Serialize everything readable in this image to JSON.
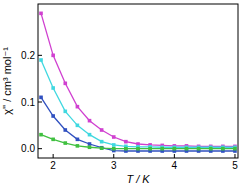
{
  "chart_data": {
    "type": "line",
    "x_label": "T / K",
    "y_label": "χ'' / cm³ mol⁻¹",
    "x": [
      1.8,
      2.0,
      2.2,
      2.4,
      2.6,
      2.8,
      3.0,
      3.2,
      3.4,
      3.6,
      3.8,
      4.0,
      4.2,
      4.4,
      4.6,
      4.8,
      5.0
    ],
    "series": [
      {
        "color": "#d040d0",
        "marker": "square",
        "values": [
          0.29,
          0.2,
          0.14,
          0.09,
          0.06,
          0.04,
          0.025,
          0.015,
          0.01,
          0.008,
          0.007,
          0.006,
          0.006,
          0.005,
          0.005,
          0.005,
          0.005
        ]
      },
      {
        "color": "#40d8e0",
        "marker": "square",
        "values": [
          0.19,
          0.13,
          0.08,
          0.05,
          0.03,
          0.015,
          0.008,
          0.005,
          0.004,
          0.004,
          0.003,
          0.003,
          0.003,
          0.003,
          0.003,
          0.003,
          0.003
        ]
      },
      {
        "color": "#3050c0",
        "marker": "square",
        "values": [
          0.11,
          0.07,
          0.04,
          0.02,
          0.01,
          0.002,
          -0.004,
          -0.005,
          -0.005,
          -0.005,
          -0.005,
          -0.005,
          -0.005,
          -0.005,
          -0.005,
          -0.005,
          -0.005
        ]
      },
      {
        "color": "#40c040",
        "marker": "square",
        "values": [
          0.03,
          0.02,
          0.012,
          0.006,
          0.003,
          0.001,
          0.0,
          0.0,
          0.0,
          0.0,
          0.0,
          0.0,
          0.0,
          0.0,
          0.0,
          0.0,
          0.0
        ]
      }
    ],
    "xlim": [
      1.75,
      5.05
    ],
    "xticks": [
      2,
      3,
      4,
      5
    ],
    "ylim": [
      -0.02,
      0.31
    ],
    "yticks": [
      {
        "value": 0,
        "label": "0.0"
      },
      0.1,
      0.2
    ],
    "grid": false
  }
}
